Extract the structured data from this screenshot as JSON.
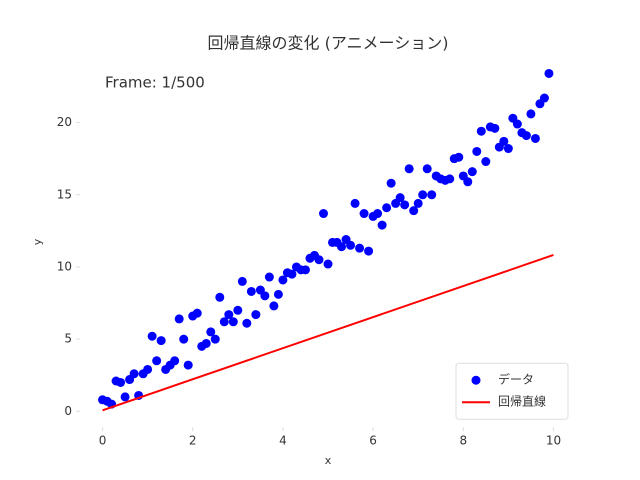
{
  "chart_data": {
    "type": "scatter",
    "title": "回帰直線の変化 (アニメーション)",
    "annotation": "Frame: 1/500",
    "x_label": "x",
    "y_label": "y",
    "xlim": [
      -0.5,
      10.5
    ],
    "ylim": [
      -1.1,
      24.5
    ],
    "xticks": [
      0,
      2,
      4,
      6,
      8,
      10
    ],
    "yticks": [
      0,
      5,
      10,
      15,
      20
    ],
    "legend": "lower right",
    "series": [
      {
        "name": "データ",
        "type": "scatter",
        "color": "#0000ff",
        "x": [
          0,
          0.1,
          0.2,
          0.3,
          0.4,
          0.5,
          0.6,
          0.7,
          0.8,
          0.9,
          1.0,
          1.1,
          1.2,
          1.3,
          1.4,
          1.5,
          1.6,
          1.7,
          1.8,
          1.9,
          2.0,
          2.1,
          2.2,
          2.3,
          2.4,
          2.5,
          2.6,
          2.7,
          2.8,
          2.9,
          3.0,
          3.1,
          3.2,
          3.3,
          3.4,
          3.5,
          3.6,
          3.7,
          3.8,
          3.9,
          4.0,
          4.1,
          4.2,
          4.3,
          4.4,
          4.5,
          4.6,
          4.7,
          4.8,
          4.9,
          5.0,
          5.1,
          5.2,
          5.3,
          5.4,
          5.5,
          5.6,
          5.7,
          5.8,
          5.9,
          6.0,
          6.1,
          6.2,
          6.3,
          6.4,
          6.5,
          6.6,
          6.7,
          6.8,
          6.9,
          7.0,
          7.1,
          7.2,
          7.3,
          7.4,
          7.5,
          7.6,
          7.7,
          7.8,
          7.9,
          8.0,
          8.1,
          8.2,
          8.3,
          8.4,
          8.5,
          8.6,
          8.7,
          8.8,
          8.9,
          9.0,
          9.1,
          9.2,
          9.3,
          9.4,
          9.5,
          9.6,
          9.7,
          9.8,
          9.9
        ],
        "values": [
          0.8,
          0.7,
          0.5,
          2.1,
          2.0,
          1.0,
          2.2,
          2.6,
          1.1,
          2.6,
          2.9,
          5.2,
          3.5,
          4.9,
          2.9,
          3.2,
          3.5,
          6.4,
          5.0,
          3.2,
          6.6,
          6.8,
          4.5,
          4.7,
          5.5,
          5.0,
          7.9,
          6.2,
          6.7,
          6.2,
          7.0,
          9.0,
          6.1,
          8.3,
          6.7,
          8.4,
          8.0,
          9.3,
          7.3,
          8.1,
          9.1,
          9.6,
          9.5,
          10.0,
          9.8,
          9.8,
          10.6,
          10.8,
          10.5,
          13.7,
          10.2,
          11.7,
          11.7,
          11.4,
          11.9,
          11.5,
          14.4,
          11.3,
          13.7,
          11.1,
          13.5,
          13.7,
          12.9,
          14.1,
          15.8,
          14.4,
          14.8,
          14.3,
          16.8,
          13.9,
          14.4,
          15.0,
          16.8,
          15.0,
          16.3,
          16.1,
          16.0,
          16.1,
          17.5,
          17.6,
          16.3,
          15.9,
          16.6,
          18.0,
          19.4,
          17.3,
          19.7,
          19.6,
          18.3,
          18.7,
          18.2,
          20.3,
          19.9,
          19.3,
          19.1,
          20.6,
          18.9,
          21.3,
          21.7,
          23.4
        ]
      },
      {
        "name": "回帰直線",
        "type": "line",
        "color": "#ff0000",
        "x": [
          0,
          10
        ],
        "values": [
          0.07,
          10.83
        ]
      }
    ]
  }
}
